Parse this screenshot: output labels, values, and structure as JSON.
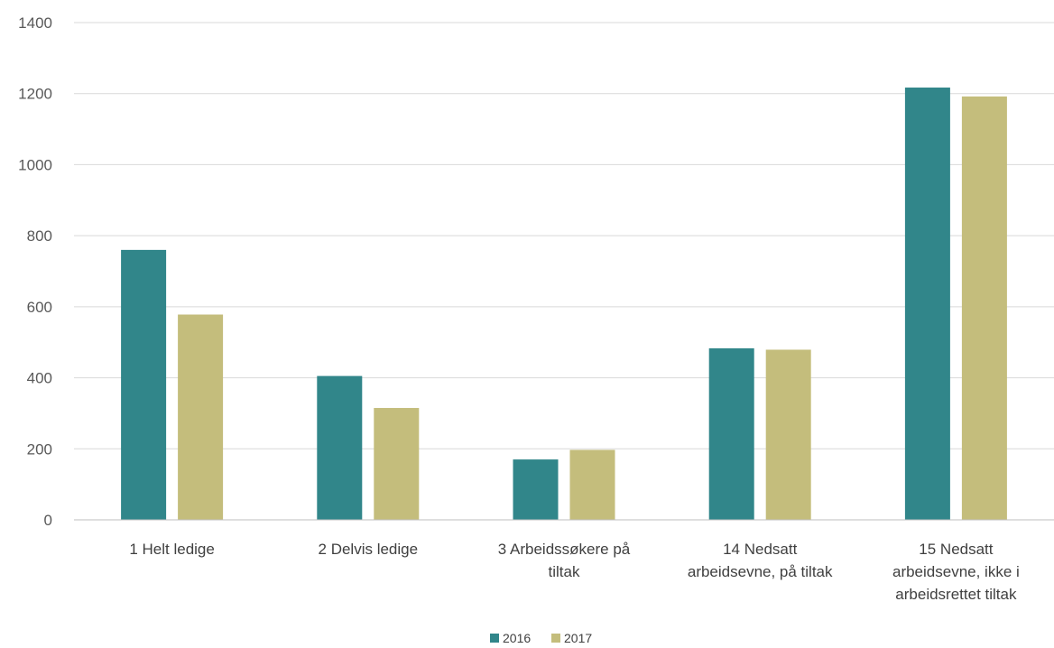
{
  "chart_data": {
    "type": "bar",
    "title": "",
    "xlabel": "",
    "ylabel": "",
    "ylim": [
      0,
      1400
    ],
    "yticks": [
      0,
      200,
      400,
      600,
      800,
      1000,
      1200,
      1400
    ],
    "grid": true,
    "legend_position": "bottom",
    "categories": [
      [
        "1 Helt ledige"
      ],
      [
        "2 Delvis ledige"
      ],
      [
        "3 Arbeidssøkere på",
        "tiltak"
      ],
      [
        "14 Nedsatt",
        "arbeidsevne, på tiltak"
      ],
      [
        "15 Nedsatt",
        "arbeidsevne, ikke i",
        "arbeidsrettet tiltak"
      ]
    ],
    "series": [
      {
        "name": "2016",
        "color": "#31868a",
        "values": [
          760,
          405,
          170,
          483,
          1217
        ]
      },
      {
        "name": "2017",
        "color": "#c4bd7c",
        "values": [
          578,
          315,
          197,
          479,
          1192
        ]
      }
    ]
  }
}
